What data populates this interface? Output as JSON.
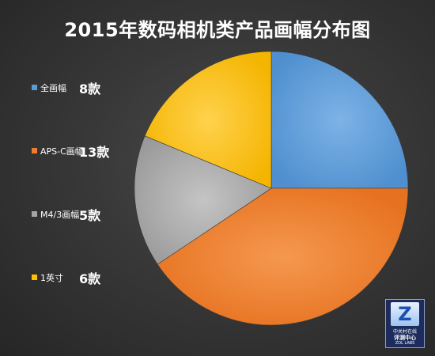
{
  "chart_data": {
    "type": "pie",
    "title": "2015年数码相机类产品画幅分布图",
    "categories": [
      "全画幅",
      "APS-C画幅",
      "M4/3画幅",
      "1英寸"
    ],
    "values": [
      8,
      13,
      5,
      6
    ],
    "value_labels": [
      "8款",
      "13款",
      "5款",
      "6款"
    ],
    "colors": [
      "#5b9bd5",
      "#ed7d31",
      "#a5a5a5",
      "#ffc000"
    ],
    "start_angle_deg": 0,
    "direction": "clockwise",
    "legend_position": "left"
  },
  "badge": {
    "logo_letter": "Z",
    "line1": "中关村在线",
    "line2": "评测中心",
    "line3": "ZOL LABS"
  }
}
